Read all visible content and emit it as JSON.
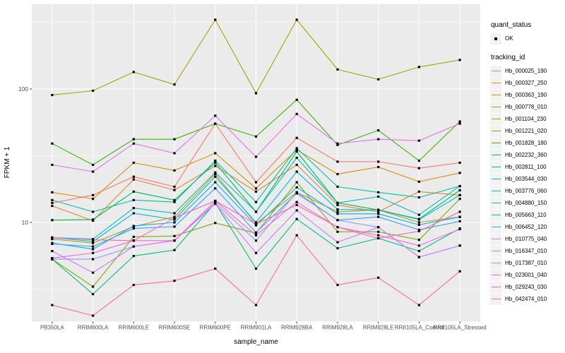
{
  "figure": {
    "background": "#FFFFFF",
    "panel_background": "#EBEBEB",
    "grid_color": "#FFFFFF",
    "axis_text_color": "#4D4D4D",
    "tick_color": "#333333",
    "point_color": "#000000",
    "legend_key_background": "#F2F2F2"
  },
  "legend": {
    "quant_status_title": "quant_status",
    "quant_status_items": [
      {
        "label": "OK",
        "marker": "black-point"
      }
    ],
    "tracking_id_title": "tracking_id"
  },
  "chart_data": {
    "type": "line",
    "title": "",
    "xlabel": "sample_name",
    "ylabel": "FPKM + 1",
    "y_scale": "log10",
    "grid": "on",
    "legend_position": "right",
    "y_ticks": [
      {
        "label": "100",
        "value": 100
      },
      {
        "label": "10",
        "value": 10
      }
    ],
    "y_minor_gridlines": [
      3.1623,
      31.623,
      316.23
    ],
    "ylim": [
      1.8,
      435
    ],
    "categories": [
      "PB350LA",
      "RRIM600LA",
      "RRIM600LE",
      "RRIM600SE",
      "RRIM600PE",
      "RRIM901LA",
      "RRIM928BA",
      "RRIM928LA",
      "RRIM928LE",
      "RRII105LA_Control",
      "RRII105LA_Stressed"
    ],
    "series": [
      {
        "tracking_id": "Hb_000025_190",
        "color": "#F8766D",
        "values": [
          14.0,
          16.0,
          22.0,
          18.5,
          55,
          20,
          43,
          28.5,
          28.5,
          25.5,
          28
        ]
      },
      {
        "tracking_id": "Hb_000327_250",
        "color": "#EA8331",
        "values": [
          13.3,
          10.3,
          21,
          17.5,
          26.5,
          17.0,
          27,
          13.5,
          12.0,
          17.0,
          16.0
        ]
      },
      {
        "tracking_id": "Hb_000363_190",
        "color": "#D89000",
        "values": [
          16.8,
          15.0,
          28,
          24.5,
          33,
          18.0,
          35,
          23,
          26,
          20.2,
          23.5
        ]
      },
      {
        "tracking_id": "Hb_000778_010",
        "color": "#C09B00",
        "values": [
          7.5,
          7.0,
          9.3,
          11.0,
          23,
          9.8,
          16.8,
          12.0,
          12.4,
          10.0,
          11.0
        ]
      },
      {
        "tracking_id": "Hb_001104_230",
        "color": "#A3A500",
        "values": [
          90,
          97,
          134,
          108,
          330,
          93,
          330,
          140,
          118,
          146,
          165
        ]
      },
      {
        "tracking_id": "Hb_001221_020",
        "color": "#7CAE00",
        "values": [
          5.3,
          3.3,
          7.8,
          7.9,
          9.9,
          8.3,
          20,
          8.5,
          8.5,
          7.4,
          15
        ]
      },
      {
        "tracking_id": "Hb_001828_180",
        "color": "#39B600",
        "values": [
          39,
          27,
          42,
          42,
          55,
          44,
          83,
          38,
          49,
          29,
          57
        ]
      },
      {
        "tracking_id": "Hb_002232_360",
        "color": "#00BB4E",
        "values": [
          10.4,
          10.5,
          17,
          14.7,
          28,
          12,
          34,
          14,
          12.4,
          10.6,
          17.4
        ]
      },
      {
        "tracking_id": "Hb_002811_100",
        "color": "#00BF7D",
        "values": [
          5.3,
          2.9,
          5.6,
          6.2,
          14,
          4.5,
          10.6,
          6.4,
          7.6,
          6.1,
          9
        ]
      },
      {
        "tracking_id": "Hb_003544_030",
        "color": "#00C1A2",
        "values": [
          14.7,
          12,
          14.7,
          14.2,
          29,
          14.2,
          36,
          18.5,
          16.8,
          15.4,
          18.7
        ]
      },
      {
        "tracking_id": "Hb_003776_060",
        "color": "#00BFC4",
        "values": [
          7.7,
          7.5,
          12.8,
          11.7,
          23.7,
          12,
          30.5,
          14,
          15.6,
          11.4,
          18.7
        ]
      },
      {
        "tracking_id": "Hb_004880_150",
        "color": "#00BAE2",
        "values": [
          7.7,
          7.2,
          11.7,
          10.5,
          22,
          10,
          24,
          12.5,
          12.4,
          10.5,
          16
        ]
      },
      {
        "tracking_id": "Hb_005663_110",
        "color": "#00B0F6",
        "values": [
          7.0,
          6.3,
          9.4,
          10,
          20,
          9.5,
          18.3,
          11.6,
          11.6,
          9.6,
          11
        ]
      },
      {
        "tracking_id": "Hb_006452_120",
        "color": "#35A2FF",
        "values": [
          6.9,
          6.6,
          9.0,
          9.3,
          18,
          8.4,
          16.5,
          10.4,
          11,
          8.8,
          10.2
        ]
      },
      {
        "tracking_id": "Hb_010775_040",
        "color": "#9590FF",
        "values": [
          5.3,
          5.3,
          6.6,
          7.3,
          14,
          7.3,
          16.8,
          10.4,
          9.2,
          5.5,
          6.7
        ]
      },
      {
        "tracking_id": "Hb_016347_010",
        "color": "#C77CFF",
        "values": [
          6.1,
          4.2,
          6.6,
          7.3,
          13.8,
          5.9,
          12.3,
          7.1,
          9.2,
          5.5,
          6.7
        ]
      },
      {
        "tracking_id": "Hb_017387_010",
        "color": "#E76BF3",
        "values": [
          27,
          24,
          39,
          33,
          63,
          31,
          65,
          39,
          42,
          41,
          55
        ]
      },
      {
        "tracking_id": "Hb_023001_040",
        "color": "#FA62DB",
        "values": [
          5.4,
          5.9,
          7.3,
          7.3,
          14.5,
          8.0,
          14.2,
          9.2,
          8.0,
          6.7,
          8.9
        ]
      },
      {
        "tracking_id": "Hb_029243_030",
        "color": "#FF62BC",
        "values": [
          7.7,
          7.4,
          7.3,
          10.8,
          14.5,
          9.7,
          13.5,
          9.2,
          7.6,
          8.6,
          12
        ]
      },
      {
        "tracking_id": "Hb_042474_010",
        "color": "#FF6A98",
        "values": [
          2.4,
          2.0,
          3.4,
          3.65,
          4.5,
          2.4,
          8.0,
          3.4,
          3.85,
          2.4,
          4.3
        ]
      }
    ]
  }
}
